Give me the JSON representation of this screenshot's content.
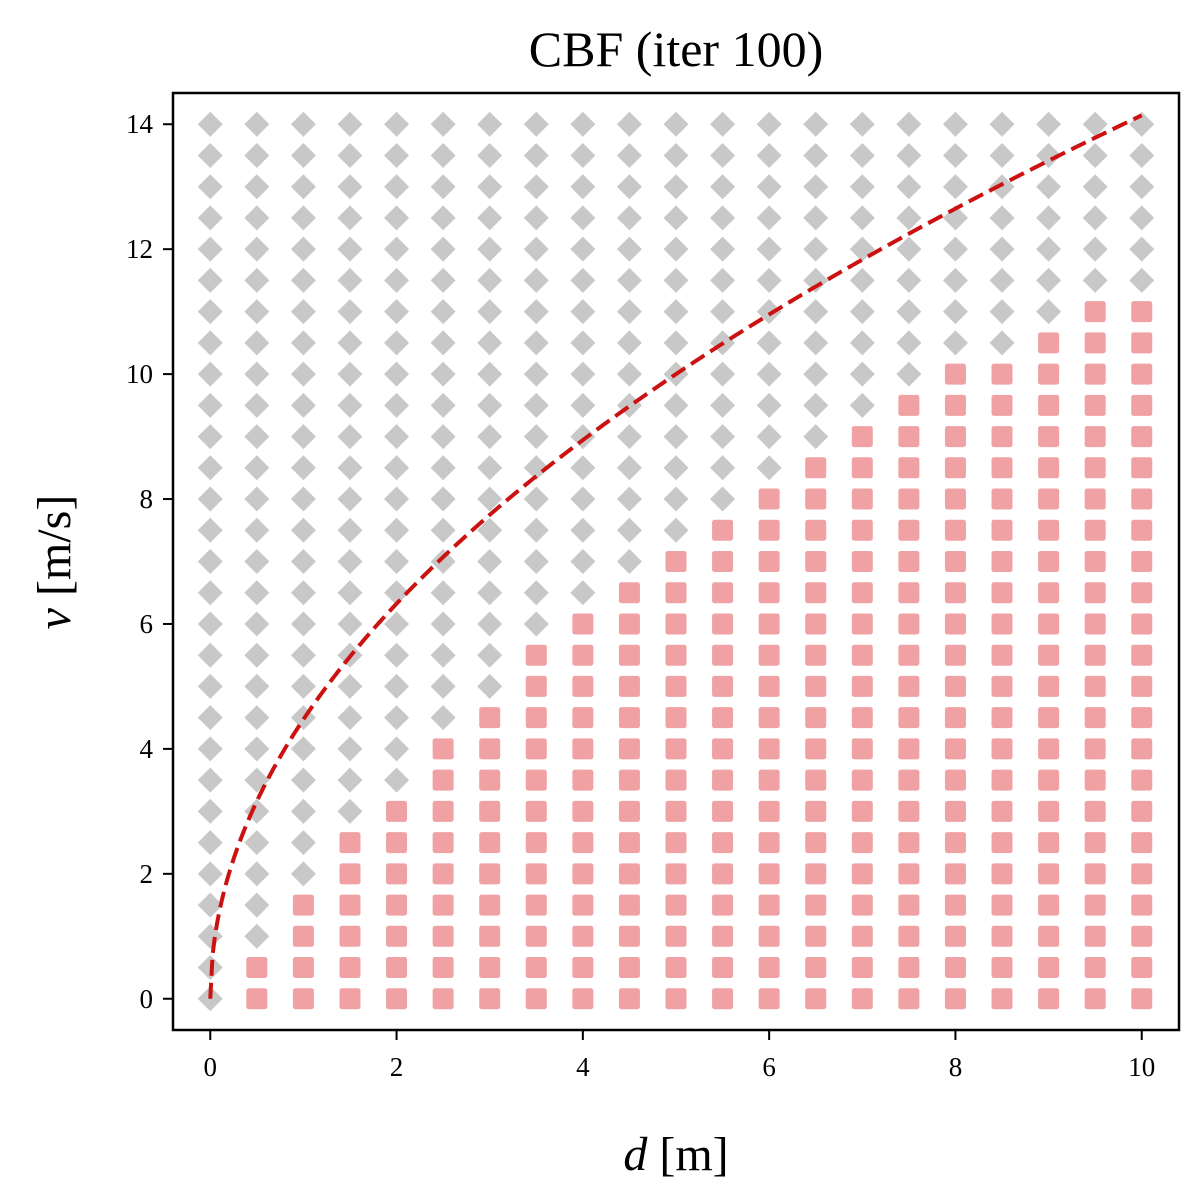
{
  "chart_data": {
    "type": "scatter",
    "title": "CBF (iter 100)",
    "xlabel": {
      "symbol": "d",
      "unit": "[m]"
    },
    "ylabel": {
      "symbol": "v",
      "unit": "[m/s]"
    },
    "xlim": [
      -0.4,
      10.4
    ],
    "ylim": [
      -0.5,
      14.5
    ],
    "xticks": [
      0,
      2,
      4,
      6,
      8,
      10
    ],
    "yticks": [
      0,
      2,
      4,
      6,
      8,
      10,
      12,
      14
    ],
    "grid": false,
    "legend": "none",
    "grid_sampling": {
      "x": [
        0,
        0.5,
        1,
        1.5,
        2,
        2.5,
        3,
        3.5,
        4,
        4.5,
        5,
        5.5,
        6,
        6.5,
        7,
        7.5,
        8,
        8.5,
        9,
        9.5,
        10
      ],
      "y_start": 0,
      "y_step": 0.5,
      "y_end": 14
    },
    "series": [
      {
        "role": "unsafe",
        "marker": "square",
        "color": "#f0a1a3",
        "description": "points with v <= max_v(d) at each d",
        "max_v_by_x": [
          null,
          0.5,
          1.5,
          2.5,
          3.0,
          4.0,
          4.5,
          5.5,
          6.0,
          6.5,
          7.0,
          7.5,
          8.0,
          8.5,
          9.0,
          9.5,
          10.0,
          10.0,
          10.5,
          11.0,
          11.0
        ]
      },
      {
        "role": "safe",
        "marker": "diamond",
        "color": "#c8c8c8",
        "description": "all remaining grid points"
      },
      {
        "role": "boundary",
        "line": "dashed",
        "color": "#cc1111",
        "function": "v = sqrt(2 * 10 * d)",
        "x_range": [
          0,
          10
        ]
      }
    ]
  }
}
